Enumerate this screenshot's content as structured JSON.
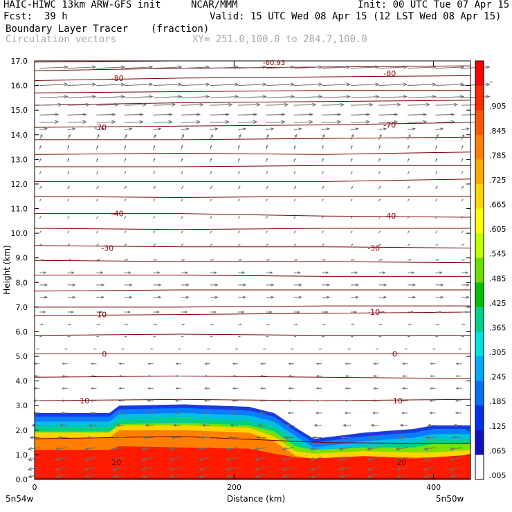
{
  "header": {
    "title": "HAIC-HIWC 13km ARW-GFS init",
    "org": "NCAR/MMM",
    "init": "Init: 00 UTC Tue 07 Apr 15",
    "fcst_label": "Fcst:",
    "fcst_value": "39 h",
    "valid": "Valid: 15 UTC Wed 08 Apr 15 (12 LST Wed 08 Apr 15)",
    "field_name": "Boundary Layer Tracer",
    "field_units": "(fraction)",
    "vector_label": "Circulation vectors",
    "xy_range": "XY= 251.0,100.0 to 284.7,100.0"
  },
  "chart_data": {
    "type": "heatmap",
    "title": "Boundary Layer Tracer",
    "units": "(fraction)",
    "xlabel": "Distance (km)",
    "ylabel": "Height (km)",
    "xlim": [
      0,
      437
    ],
    "ylim": [
      0,
      17
    ],
    "x_ticks": [
      "0",
      "200",
      "400"
    ],
    "x_tick_values": [
      0,
      200,
      400
    ],
    "y_ticks": [
      "0.0",
      "1.0",
      "2.0",
      "3.0",
      "4.0",
      "5.0",
      "6.0",
      "7.0",
      "8.0",
      "9.0",
      "10.0",
      "11.0",
      "12.0",
      "13.0",
      "14.0",
      "15.0",
      "16.0",
      "17.0"
    ],
    "y_tick_values": [
      0,
      1,
      2,
      3,
      4,
      5,
      6,
      7,
      8,
      9,
      10,
      11,
      12,
      13,
      14,
      15,
      16,
      17
    ],
    "x_endpoint_labels": [
      "5n54w",
      "5n50w"
    ],
    "colorbar": {
      "labels": [
        "–",
        ".905",
        ".845",
        ".785",
        ".725",
        ".665",
        ".605",
        ".545",
        ".485",
        ".425",
        ".365",
        ".305",
        ".245",
        ".185",
        ".125",
        ".065",
        ".005"
      ],
      "colors": [
        "#ff0000",
        "#ff2a00",
        "#ff5500",
        "#ff7f00",
        "#ffaa00",
        "#ffd400",
        "#ffff00",
        "#c0ff00",
        "#6be000",
        "#00c000",
        "#00d08a",
        "#00e0e0",
        "#00a8ff",
        "#0070ff",
        "#0030e8",
        "#1010c0",
        "#ffffff"
      ]
    },
    "tracer_top": [
      {
        "x": 0,
        "top": 2.7,
        "mid": 1.9,
        "core": 1.2
      },
      {
        "x": 75,
        "top": 2.7,
        "mid": 1.9,
        "core": 1.2
      },
      {
        "x": 85,
        "top": 3.0,
        "mid": 2.2,
        "core": 1.35
      },
      {
        "x": 150,
        "top": 3.05,
        "mid": 2.2,
        "core": 1.3
      },
      {
        "x": 215,
        "top": 2.95,
        "mid": 2.1,
        "core": 1.25
      },
      {
        "x": 240,
        "top": 2.7,
        "mid": 1.75,
        "core": 1.05
      },
      {
        "x": 262,
        "top": 2.1,
        "mid": 1.15,
        "core": 0.9
      },
      {
        "x": 280,
        "top": 1.65,
        "mid": 1.05,
        "core": 0.85
      },
      {
        "x": 330,
        "top": 1.9,
        "mid": 1.15,
        "core": 0.95
      },
      {
        "x": 380,
        "top": 2.05,
        "mid": 1.1,
        "core": 0.85
      },
      {
        "x": 400,
        "top": 2.2,
        "mid": 1.1,
        "core": 0.9
      },
      {
        "x": 437,
        "top": 2.2,
        "mid": 1.2,
        "core": 1.0
      }
    ],
    "isotherm_levels": [
      -80,
      -70,
      -40,
      -30,
      -10,
      0,
      10,
      20
    ],
    "isotherm_labels": [
      {
        "text": "-80",
        "x": 83,
        "y": 16.3
      },
      {
        "text": "-80",
        "x": 356,
        "y": 16.5
      },
      {
        "text": "-70",
        "x": 66,
        "y": 14.3
      },
      {
        "text": "-70",
        "x": 356,
        "y": 14.4
      },
      {
        "text": "-40",
        "x": 83,
        "y": 10.8
      },
      {
        "text": "-40",
        "x": 356,
        "y": 10.7
      },
      {
        "text": "-30",
        "x": 73,
        "y": 9.4
      },
      {
        "text": "-30",
        "x": 340,
        "y": 9.4
      },
      {
        "text": "-10",
        "x": 66,
        "y": 6.7
      },
      {
        "text": "-10",
        "x": 340,
        "y": 6.8
      },
      {
        "text": "0",
        "x": 70,
        "y": 5.1
      },
      {
        "text": "0",
        "x": 361,
        "y": 5.1
      },
      {
        "text": "10",
        "x": 50,
        "y": 3.2
      },
      {
        "text": "10",
        "x": 364,
        "y": 3.2
      },
      {
        "text": "20",
        "x": 82,
        "y": 0.7
      },
      {
        "text": "20",
        "x": 368,
        "y": 0.7
      }
    ],
    "top_edge_label": "-60.93",
    "theta_contours": [
      [
        0.05,
        0.05,
        0.05,
        0.05
      ],
      [
        1.65,
        1.75,
        1.5,
        1.45
      ],
      [
        16.95,
        17.0,
        17.0,
        17.0
      ],
      [
        16.6,
        16.7,
        16.75,
        16.8
      ],
      [
        16.2,
        16.3,
        16.35,
        16.4
      ],
      [
        15.7,
        15.75,
        15.8,
        15.8
      ],
      [
        15.2,
        15.3,
        15.35,
        15.4
      ],
      [
        14.3,
        14.35,
        14.4,
        14.5
      ],
      [
        13.8,
        13.8,
        13.85,
        13.9
      ],
      [
        13.2,
        13.25,
        13.2,
        13.3
      ],
      [
        12.7,
        12.7,
        12.75,
        12.75
      ],
      [
        12.1,
        12.1,
        12.1,
        12.2
      ],
      [
        11.5,
        11.45,
        11.5,
        11.5
      ],
      [
        10.8,
        10.8,
        10.7,
        10.65
      ],
      [
        10.2,
        10.15,
        10.2,
        10.2
      ],
      [
        9.5,
        9.45,
        9.45,
        9.4
      ],
      [
        8.9,
        8.85,
        8.85,
        8.8
      ],
      [
        8.3,
        8.3,
        8.25,
        8.25
      ],
      [
        7.65,
        7.7,
        7.7,
        7.7
      ],
      [
        7.0,
        7.0,
        7.05,
        7.05
      ],
      [
        6.65,
        6.7,
        6.75,
        6.8
      ],
      [
        5.85,
        5.9,
        5.85,
        5.85
      ],
      [
        5.1,
        5.1,
        5.1,
        5.1
      ],
      [
        4.15,
        4.2,
        4.15,
        4.1
      ],
      [
        3.2,
        3.25,
        3.2,
        3.25
      ]
    ],
    "vectors": {
      "rows": [
        {
          "h": 16.7,
          "u": 4.5,
          "w": 0.2
        },
        {
          "h": 16.0,
          "u": 4.5,
          "w": 0.2
        },
        {
          "h": 15.5,
          "u": 4.5,
          "w": 0.2
        },
        {
          "h": 15.2,
          "u": 3.5,
          "w": 0.1
        },
        {
          "h": 14.8,
          "u": 3.0,
          "w": 0.1
        },
        {
          "h": 14.5,
          "u": 3.0,
          "w": 0.1
        },
        {
          "h": 14.2,
          "u": 1.2,
          "w": 0.2
        },
        {
          "h": 13.8,
          "u": 0.4,
          "w": 0.8
        },
        {
          "h": 13.4,
          "u": 0.2,
          "w": 0.6
        },
        {
          "h": 12.9,
          "u": 0.2,
          "w": 0.5
        },
        {
          "h": 12.4,
          "u": 0.2,
          "w": 0.4
        },
        {
          "h": 11.8,
          "u": 0.3,
          "w": 0.4
        },
        {
          "h": 11.3,
          "u": 0.2,
          "w": 0.3
        },
        {
          "h": 10.6,
          "u": 0.2,
          "w": 0.3
        },
        {
          "h": 10.0,
          "u": 0.2,
          "w": 0.3
        },
        {
          "h": 9.5,
          "u": 0.3,
          "w": 0.2
        },
        {
          "h": 8.9,
          "u": 0.5,
          "w": 0.1
        },
        {
          "h": 8.4,
          "u": 1.0,
          "w": 0.0
        },
        {
          "h": 7.9,
          "u": 1.2,
          "w": 0.0
        },
        {
          "h": 7.4,
          "u": 1.2,
          "w": 0.0
        },
        {
          "h": 6.8,
          "u": 0.9,
          "w": 0.0
        },
        {
          "h": 6.3,
          "u": 0.5,
          "w": 0.0
        },
        {
          "h": 5.8,
          "u": 0.3,
          "w": 0.0
        },
        {
          "h": 5.3,
          "u": -0.4,
          "w": 0.0
        },
        {
          "h": 4.7,
          "u": -0.8,
          "w": 0.0
        },
        {
          "h": 4.2,
          "u": -0.8,
          "w": 0.0
        },
        {
          "h": 3.7,
          "u": -0.8,
          "w": 0.0
        },
        {
          "h": 3.2,
          "u": -0.9,
          "w": 0.0
        },
        {
          "h": 2.7,
          "u": -0.9,
          "w": 0.0
        },
        {
          "h": 2.2,
          "u": -1.2,
          "w": 0.0
        },
        {
          "h": 1.7,
          "u": -1.5,
          "w": 0.0
        },
        {
          "h": 1.3,
          "u": -1.8,
          "w": -0.3
        },
        {
          "h": 0.9,
          "u": -1.8,
          "w": -0.4
        },
        {
          "h": 0.5,
          "u": -1.8,
          "w": -0.4
        },
        {
          "h": 0.2,
          "u": -1.8,
          "w": -0.4
        }
      ],
      "columns_km": [
        5,
        33,
        62,
        90,
        119,
        147,
        176,
        204,
        232,
        260,
        288,
        317,
        345,
        374,
        402,
        428
      ]
    }
  }
}
